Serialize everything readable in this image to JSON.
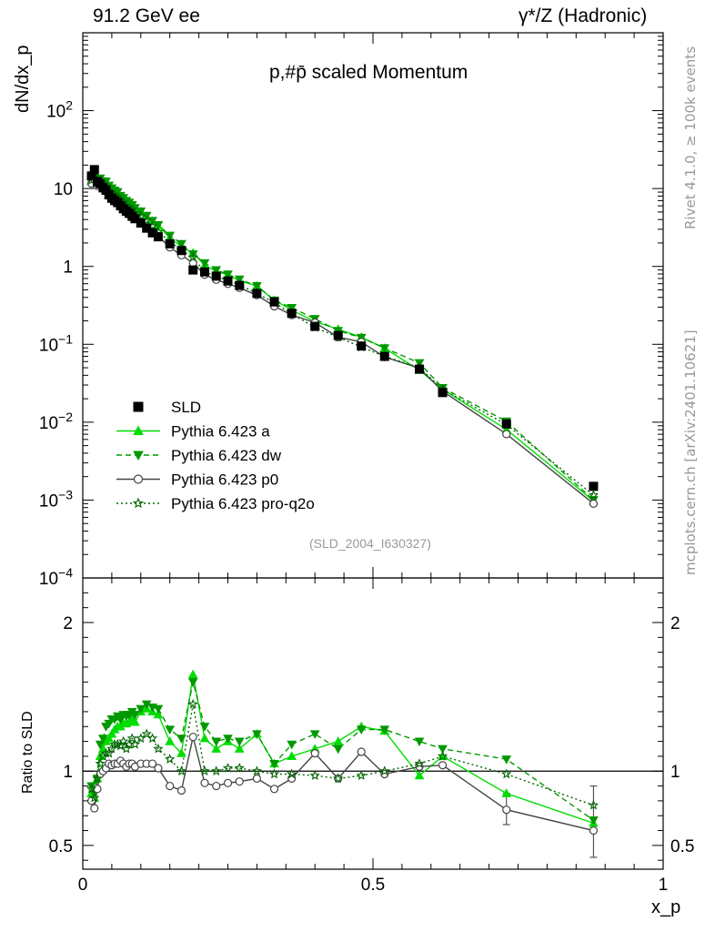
{
  "header": {
    "energy": "91.2 GeV ee",
    "process": "γ*/Z (Hadronic)"
  },
  "side_labels": {
    "rivet": "Rivet 4.1.0, ≥ 100k events",
    "mcplots": "mcplots.cern.ch [arXiv:2401.10621]"
  },
  "chart_data": {
    "type": "line",
    "title": "p,#p̄ scaled Momentum",
    "analysis_tag": "(SLD_2004_I630327)",
    "xlabel": "x_p",
    "ylabel": "dN/dx_p",
    "ratio_ylabel": "Ratio to SLD",
    "xlim": [
      0,
      1
    ],
    "ylim": [
      0.0001,
      1000
    ],
    "ratio_ylim": [
      0.34,
      2.3
    ],
    "y_scale": "log",
    "legend_position": "bottom-left",
    "x_ticks": [
      "0",
      "0.5",
      "1"
    ],
    "y_ticks": [
      {
        "v": 0.0001,
        "b": "10",
        "e": "−4"
      },
      {
        "v": 0.001,
        "b": "10",
        "e": "−3"
      },
      {
        "v": 0.01,
        "b": "10",
        "e": "−2"
      },
      {
        "v": 0.1,
        "b": "10",
        "e": "−1"
      },
      {
        "v": 1,
        "b": "1",
        "e": ""
      },
      {
        "v": 10,
        "b": "10",
        "e": ""
      },
      {
        "v": 100,
        "b": "10",
        "e": "2"
      }
    ],
    "ratio_ticks": [
      "0.5",
      "1",
      "2"
    ],
    "x": [
      0.015,
      0.02,
      0.025,
      0.03,
      0.035,
      0.04,
      0.045,
      0.05,
      0.055,
      0.06,
      0.065,
      0.07,
      0.075,
      0.08,
      0.085,
      0.09,
      0.1,
      0.11,
      0.12,
      0.13,
      0.15,
      0.17,
      0.19,
      0.21,
      0.23,
      0.25,
      0.27,
      0.3,
      0.33,
      0.36,
      0.4,
      0.44,
      0.48,
      0.52,
      0.58,
      0.62,
      0.73,
      0.88
    ],
    "sld": [
      14.5,
      17.5,
      12.3,
      11.5,
      10.2,
      9.5,
      8.3,
      7.5,
      7.0,
      6.6,
      6.0,
      5.5,
      5.1,
      4.8,
      4.4,
      4.1,
      3.6,
      3.1,
      2.7,
      2.4,
      1.95,
      1.6,
      0.9,
      0.85,
      0.75,
      0.65,
      0.57,
      0.45,
      0.35,
      0.25,
      0.17,
      0.13,
      0.095,
      0.07,
      0.048,
      0.024,
      0.0095,
      0.0015
    ],
    "series": [
      {
        "name": "Pythia 6.423 a",
        "color": "#00dd00",
        "marker": "triangle-up",
        "line": "solid",
        "ratio": [
          0.85,
          0.82,
          0.95,
          1.1,
          1.15,
          1.2,
          1.22,
          1.25,
          1.28,
          1.3,
          1.3,
          1.32,
          1.32,
          1.33,
          1.35,
          1.33,
          1.4,
          1.42,
          1.4,
          1.38,
          1.2,
          1.12,
          1.65,
          1.22,
          1.15,
          1.2,
          1.15,
          1.25,
          1.05,
          1.1,
          1.15,
          1.2,
          1.3,
          1.27,
          0.97,
          1.1,
          0.85,
          0.65
        ]
      },
      {
        "name": "Pythia 6.423 dw",
        "color": "#009900",
        "marker": "triangle-down",
        "line": "dashed",
        "ratio": [
          0.9,
          0.85,
          0.95,
          1.18,
          1.22,
          1.3,
          1.32,
          1.35,
          1.35,
          1.37,
          1.35,
          1.38,
          1.37,
          1.38,
          1.4,
          1.38,
          1.42,
          1.45,
          1.43,
          1.42,
          1.28,
          1.22,
          1.6,
          1.3,
          1.2,
          1.22,
          1.2,
          1.25,
          1.05,
          1.18,
          1.25,
          1.15,
          1.28,
          1.28,
          1.2,
          1.15,
          1.08,
          0.67
        ]
      },
      {
        "name": "Pythia 6.423 p0",
        "color": "#444444",
        "marker": "circle-open",
        "line": "solid",
        "ratio": [
          0.8,
          0.75,
          0.88,
          0.98,
          1.0,
          1.02,
          1.05,
          1.04,
          1.05,
          1.05,
          1.07,
          1.05,
          1.03,
          1.05,
          1.05,
          1.03,
          1.05,
          1.05,
          1.05,
          1.02,
          0.9,
          0.87,
          1.23,
          0.92,
          0.9,
          0.92,
          0.93,
          0.95,
          0.88,
          0.95,
          1.12,
          0.95,
          1.13,
          0.98,
          1.03,
          1.04,
          0.74,
          0.6
        ]
      },
      {
        "name": "Pythia 6.423 pro-q2o",
        "color": "#006600",
        "marker": "star-open",
        "line": "dotted",
        "ratio": [
          0.88,
          0.82,
          0.95,
          1.05,
          1.1,
          1.12,
          1.12,
          1.15,
          1.18,
          1.18,
          1.17,
          1.2,
          1.15,
          1.18,
          1.22,
          1.18,
          1.22,
          1.25,
          1.22,
          1.15,
          1.08,
          1.0,
          1.45,
          1.0,
          1.0,
          1.02,
          1.02,
          1.0,
          0.98,
          0.98,
          0.97,
          0.95,
          0.97,
          1.0,
          1.05,
          1.1,
          0.98,
          0.77
        ]
      }
    ],
    "ratio_error_bars": [
      {
        "x": 0.73,
        "low": 0.64,
        "high": 0.85
      },
      {
        "x": 0.88,
        "low": 0.42,
        "high": 0.9
      }
    ]
  }
}
